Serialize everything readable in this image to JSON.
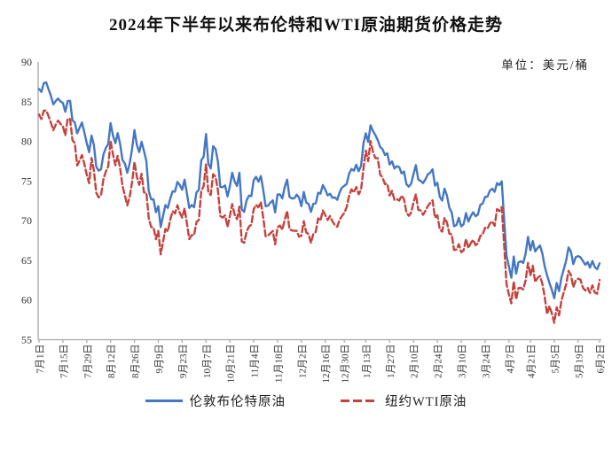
{
  "chart_data": {
    "type": "line",
    "title": "2024年下半年以来布伦特和WTI原油期货价格走势",
    "unit_label": "单位：美元/桶",
    "xlabel": "",
    "ylabel": "",
    "ylim": [
      55,
      90
    ],
    "yticks": [
      55,
      60,
      65,
      70,
      75,
      80,
      85,
      90
    ],
    "grid": false,
    "legend_position": "bottom",
    "x_tick_labels": [
      "7月1日",
      "7月15日",
      "7月29日",
      "8月12日",
      "8月26日",
      "9月9日",
      "9月23日",
      "10月7日",
      "10月21日",
      "11月4日",
      "11月18日",
      "12月2日",
      "12月16日",
      "12月30日",
      "1月13日",
      "1月27日",
      "2月10日",
      "2月24日",
      "3月10日",
      "3月24日",
      "4月7日",
      "4月21日",
      "5月5日",
      "5月19日",
      "6月2日"
    ],
    "x_tick_indices": [
      0,
      10,
      20,
      30,
      40,
      50,
      60,
      70,
      80,
      90,
      100,
      110,
      120,
      128,
      137,
      147,
      157,
      167,
      177,
      187,
      197,
      206,
      216,
      226,
      235
    ],
    "axis_color": "#a6a6a6",
    "tick_text_color": "#333333",
    "series": [
      {
        "name": "伦敦布伦特原油",
        "color": "#4477C3",
        "dash": "solid",
        "values": [
          86.6,
          86.24,
          87.34,
          87.43,
          86.54,
          85.75,
          84.66,
          85.08,
          85.4,
          85.03,
          84.85,
          83.73,
          85.08,
          85.11,
          82.63,
          82.4,
          81.01,
          81.71,
          82.37,
          81.13,
          79.78,
          78.63,
          80.72,
          79.52,
          76.81,
          76.3,
          76.48,
          78.33,
          79.16,
          79.66,
          82.3,
          80.69,
          79.76,
          81.04,
          79.68,
          77.66,
          77.2,
          76.05,
          77.22,
          79.02,
          81.43,
          79.55,
          78.65,
          79.94,
          78.8,
          77.52,
          73.75,
          72.7,
          72.69,
          71.06,
          71.84,
          69.19,
          70.61,
          71.97,
          71.61,
          72.75,
          73.7,
          73.65,
          74.88,
          74.49,
          73.9,
          75.17,
          73.46,
          71.6,
          71.98,
          71.7,
          73.56,
          73.9,
          77.62,
          78.05,
          80.93,
          77.18,
          76.58,
          79.4,
          79.04,
          77.46,
          74.25,
          74.22,
          74.45,
          73.06,
          74.29,
          76.04,
          74.96,
          74.38,
          76.05,
          71.42,
          71.12,
          72.55,
          73.16,
          73.1,
          75.08,
          75.53,
          74.92,
          75.63,
          73.87,
          71.83,
          71.89,
          72.28,
          72.56,
          71.04,
          73.3,
          73.31,
          72.81,
          74.23,
          75.17,
          73.01,
          72.81,
          72.83,
          73.28,
          72.94,
          71.83,
          73.62,
          72.31,
          72.09,
          71.12,
          72.14,
          72.19,
          73.52,
          73.41,
          74.49,
          73.91,
          73.19,
          73.39,
          72.88,
          72.94,
          72.63,
          73.58,
          74.17,
          74.39,
          74.64,
          75.93,
          76.51,
          76.3,
          77.05,
          76.23,
          76.92,
          79.76,
          81.01,
          79.92,
          82.03,
          81.29,
          80.79,
          80.15,
          79.29,
          79.0,
          78.29,
          78.5,
          77.08,
          77.49,
          76.58,
          76.87,
          76.76,
          75.96,
          76.2,
          74.61,
          74.29,
          74.66,
          75.87,
          77.0,
          75.18,
          75.02,
          74.74,
          75.22,
          75.84,
          76.04,
          76.48,
          74.43,
          74.78,
          73.02,
          72.53,
          74.04,
          73.18,
          71.62,
          71.04,
          69.3,
          69.46,
          70.36,
          69.28,
          69.56,
          70.95,
          69.88,
          70.58,
          71.07,
          70.56,
          70.78,
          72.0,
          72.16,
          73.0,
          73.02,
          73.79,
          74.03,
          73.63,
          74.74,
          74.49,
          74.95,
          70.14,
          65.58,
          64.21,
          62.82,
          65.48,
          63.33,
          64.76,
          64.88,
          64.67,
          65.85,
          67.96,
          66.26,
          67.44,
          66.12,
          66.55,
          66.87,
          65.86,
          64.25,
          63.12,
          62.13,
          61.29,
          60.23,
          62.15,
          61.12,
          62.84,
          63.91,
          64.96,
          66.63,
          66.09,
          64.53,
          65.41,
          65.54,
          65.38,
          64.91,
          64.44,
          64.78,
          64.09,
          64.92,
          64.15,
          63.9,
          64.63
        ]
      },
      {
        "name": "纽约WTI原油",
        "color": "#C4423E",
        "dash": "dashed",
        "values": [
          83.38,
          82.81,
          83.88,
          83.88,
          83.16,
          82.33,
          81.41,
          82.1,
          82.62,
          82.21,
          81.91,
          80.76,
          82.85,
          82.82,
          80.13,
          79.78,
          76.96,
          77.59,
          78.28,
          77.16,
          75.81,
          74.73,
          77.91,
          76.31,
          73.52,
          72.94,
          73.2,
          75.23,
          76.19,
          76.84,
          80.06,
          78.35,
          76.98,
          78.16,
          76.65,
          74.37,
          73.17,
          71.93,
          73.01,
          74.83,
          77.42,
          75.53,
          74.52,
          75.91,
          73.55,
          73.55,
          70.34,
          69.2,
          69.15,
          67.67,
          68.71,
          65.75,
          67.31,
          68.97,
          68.65,
          70.09,
          71.19,
          70.91,
          71.95,
          71.0,
          70.37,
          71.56,
          69.69,
          67.67,
          68.18,
          68.17,
          69.83,
          70.1,
          73.71,
          74.38,
          77.14,
          73.57,
          73.24,
          75.85,
          75.56,
          73.83,
          70.58,
          70.39,
          70.67,
          69.22,
          70.56,
          72.09,
          70.77,
          70.19,
          71.78,
          67.38,
          67.21,
          68.61,
          69.26,
          69.49,
          71.47,
          71.99,
          71.69,
          72.36,
          70.38,
          68.04,
          68.12,
          68.43,
          68.7,
          67.02,
          69.16,
          69.39,
          68.87,
          70.1,
          71.24,
          68.94,
          68.77,
          68.72,
          68.72,
          68.0,
          68.1,
          69.94,
          68.54,
          68.3,
          67.2,
          68.37,
          68.59,
          70.29,
          70.02,
          71.29,
          70.71,
          70.08,
          70.58,
          69.91,
          69.46,
          69.24,
          70.1,
          70.6,
          70.99,
          71.72,
          73.13,
          73.96,
          73.56,
          74.25,
          73.32,
          73.92,
          76.57,
          78.82,
          77.5,
          80.04,
          78.68,
          77.88,
          77.88,
          75.83,
          75.44,
          74.62,
          74.66,
          73.17,
          73.77,
          72.62,
          72.73,
          72.53,
          73.16,
          72.7,
          71.03,
          70.61,
          71.0,
          72.32,
          73.32,
          71.37,
          71.29,
          70.74,
          71.25,
          71.85,
          72.25,
          72.57,
          70.4,
          70.7,
          68.93,
          68.62,
          70.35,
          69.76,
          68.37,
          68.26,
          66.31,
          66.36,
          67.04,
          66.03,
          66.25,
          67.68,
          66.55,
          67.18,
          67.58,
          66.9,
          67.16,
          68.07,
          68.28,
          69.11,
          69.0,
          69.65,
          69.92,
          69.36,
          71.48,
          71.2,
          71.71,
          66.95,
          61.99,
          60.7,
          59.58,
          62.35,
          60.07,
          61.5,
          61.53,
          61.33,
          62.47,
          64.68,
          63.08,
          64.32,
          62.27,
          62.79,
          63.02,
          62.05,
          60.42,
          58.21,
          59.24,
          58.29,
          57.13,
          59.09,
          58.07,
          59.91,
          61.02,
          61.95,
          63.67,
          63.15,
          61.62,
          62.49,
          62.69,
          62.56,
          61.57,
          61.2,
          61.53,
          60.89,
          61.84,
          60.94,
          60.79,
          62.52
        ]
      }
    ]
  }
}
